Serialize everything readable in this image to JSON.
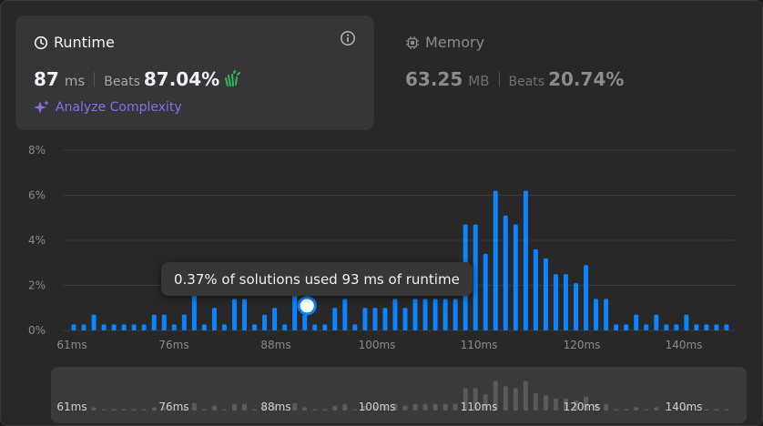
{
  "runtime": {
    "title": "Runtime",
    "value": "87",
    "unit": "ms",
    "beats_label": "Beats",
    "beats_value": "87.04%",
    "analyze_label": "Analyze Complexity",
    "icons": [
      "clock-icon",
      "info-icon",
      "clap-icon",
      "sparkle-icon"
    ]
  },
  "memory": {
    "title": "Memory",
    "value": "63.25",
    "unit": "MB",
    "beats_label": "Beats",
    "beats_value": "20.74%",
    "icons": [
      "chip-icon"
    ]
  },
  "tooltip": {
    "text": "0.37% of solutions used 93 ms of runtime"
  },
  "colors": {
    "bar": "#0a84ff",
    "overview_bar": "#5a5a5a",
    "grid": "#3c3c3c",
    "accent": "#8e6bf0",
    "clap": "#2cbb5d"
  },
  "chart_data": {
    "type": "bar",
    "ylim": [
      0,
      8
    ],
    "y_ticks": [
      "0%",
      "2%",
      "4%",
      "6%",
      "8%"
    ],
    "x_ticks": [
      {
        "label": "61ms",
        "value": 61
      },
      {
        "label": "76ms",
        "value": 76
      },
      {
        "label": "88ms",
        "value": 88
      },
      {
        "label": "100ms",
        "value": 100
      },
      {
        "label": "110ms",
        "value": 110
      },
      {
        "label": "120ms",
        "value": 120
      },
      {
        "label": "140ms",
        "value": 140
      }
    ],
    "bars": [
      0.27,
      0.27,
      0.7,
      0.27,
      0.27,
      0.27,
      0.27,
      0.27,
      0.7,
      0.7,
      0.27,
      0.7,
      1.6,
      0.27,
      1.0,
      0.27,
      1.4,
      1.4,
      0.27,
      0.7,
      1.0,
      0.27,
      1.6,
      0.7,
      0.27,
      0.27,
      1.0,
      1.4,
      0.27,
      1.0,
      1.0,
      1.0,
      1.4,
      1.0,
      1.4,
      1.4,
      1.4,
      1.4,
      1.4,
      4.7,
      4.7,
      3.4,
      6.2,
      5.1,
      4.7,
      6.2,
      3.6,
      3.2,
      2.5,
      2.5,
      2.1,
      2.9,
      1.4,
      1.4,
      0.27,
      0.27,
      0.7,
      0.27,
      0.7,
      0.27,
      0.27,
      0.7,
      0.27,
      0.27,
      0.27,
      0.27
    ],
    "highlight": {
      "value": 93,
      "percent": 0.37
    }
  }
}
